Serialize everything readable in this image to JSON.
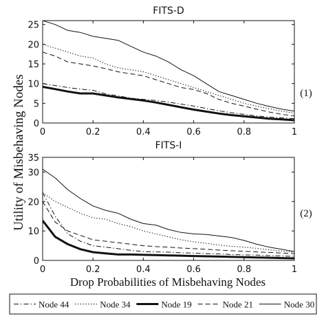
{
  "figure": {
    "ylabel": "Utility of Misbehaving Nodes",
    "xlabel": "Drop Probabilities of Misbehaving Nodes",
    "panel_labels": [
      "(1)",
      "(2)"
    ],
    "legend": [
      {
        "name": "Node 44",
        "style": "dashdot"
      },
      {
        "name": "Node 34",
        "style": "dotted"
      },
      {
        "name": "Node 19",
        "style": "thick"
      },
      {
        "name": "Node 21",
        "style": "dashed"
      },
      {
        "name": "Node 30",
        "style": "solid"
      }
    ]
  },
  "chart_data": [
    {
      "type": "line",
      "title": "FITS-D",
      "xlim": [
        0,
        1
      ],
      "ylim": [
        0,
        26
      ],
      "xticks": [
        0,
        0.2,
        0.4,
        0.6,
        0.8,
        1
      ],
      "xtick_labels": [
        "0",
        "0.2",
        "0.4",
        "0.6",
        "0.8",
        "1"
      ],
      "yticks": [
        0,
        5,
        10,
        15,
        20,
        25
      ],
      "ytick_labels": [
        "0",
        "5",
        "10",
        "15",
        "20",
        "25"
      ],
      "grid": false,
      "x": [
        0,
        0.05,
        0.1,
        0.15,
        0.2,
        0.25,
        0.3,
        0.35,
        0.4,
        0.45,
        0.5,
        0.55,
        0.6,
        0.65,
        0.7,
        0.75,
        0.8,
        0.85,
        0.9,
        0.95,
        1
      ],
      "series": [
        {
          "name": "Node 44",
          "style": "dashdot",
          "values": [
            10,
            9.5,
            9,
            8.6,
            8.3,
            7.4,
            6.9,
            6.3,
            6,
            5.7,
            5.3,
            4.8,
            4.3,
            3.7,
            3.1,
            2.6,
            2.2,
            1.8,
            1.5,
            1.3,
            1.1
          ]
        },
        {
          "name": "Node 34",
          "style": "dotted",
          "values": [
            20,
            19,
            18,
            17,
            16.5,
            15,
            14,
            13.5,
            13,
            12,
            11,
            10,
            9,
            8,
            7,
            6,
            5,
            4.3,
            3.6,
            3,
            2.5
          ]
        },
        {
          "name": "Node 19",
          "style": "thick",
          "values": [
            9.2,
            8.6,
            8,
            7.5,
            7.5,
            7,
            6.5,
            6.1,
            5.7,
            5.2,
            4.6,
            4,
            3.4,
            2.9,
            2.4,
            2,
            1.7,
            1.4,
            1.1,
            0.9,
            0.7
          ]
        },
        {
          "name": "Node 21",
          "style": "dashed",
          "values": [
            18,
            17,
            15.5,
            15,
            14.5,
            13.8,
            13,
            12.5,
            12,
            11,
            10,
            9,
            8.5,
            7.5,
            6,
            5,
            4.3,
            3.5,
            2.8,
            2.2,
            1.8
          ]
        },
        {
          "name": "Node 30",
          "style": "solid",
          "values": [
            26,
            25,
            23.5,
            23,
            22,
            21.5,
            21,
            19.5,
            18,
            17,
            15.5,
            13.5,
            12,
            10,
            8,
            7,
            6,
            5,
            4.2,
            3.5,
            3
          ]
        }
      ]
    },
    {
      "type": "line",
      "title": "FITS-I",
      "xlim": [
        0,
        1
      ],
      "ylim": [
        0,
        35
      ],
      "xticks": [
        0,
        0.2,
        0.4,
        0.6,
        0.8,
        1
      ],
      "xtick_labels": [
        "0",
        "0.2",
        "0.4",
        "0.6",
        "0.8",
        "1"
      ],
      "yticks": [
        0,
        10,
        20,
        30,
        35
      ],
      "ytick_labels": [
        "0",
        "10",
        "20",
        "30",
        "35"
      ],
      "grid": false,
      "x": [
        0,
        0.05,
        0.1,
        0.15,
        0.2,
        0.25,
        0.3,
        0.35,
        0.4,
        0.45,
        0.5,
        0.55,
        0.6,
        0.65,
        0.7,
        0.75,
        0.8,
        0.85,
        0.9,
        0.95,
        1
      ],
      "series": [
        {
          "name": "Node 44",
          "style": "dashdot",
          "values": [
            23,
            15,
            9,
            6.5,
            5,
            4.5,
            4,
            3.4,
            3,
            2.9,
            2.8,
            2.6,
            2.5,
            2.3,
            2.2,
            2,
            1.9,
            1.8,
            1.6,
            1.5,
            1.4
          ]
        },
        {
          "name": "Node 34",
          "style": "dotted",
          "values": [
            23,
            20,
            18,
            16,
            14.5,
            14,
            12.5,
            11.5,
            10,
            9,
            8,
            7,
            6.3,
            5.8,
            5.2,
            4.8,
            4.5,
            4.1,
            3.6,
            3.2,
            2.8
          ]
        },
        {
          "name": "Node 19",
          "style": "thick",
          "values": [
            13.5,
            8,
            5.5,
            3.8,
            2.8,
            2.4,
            2,
            2,
            1.9,
            1.8,
            1.7,
            1.6,
            1.5,
            1.4,
            1.3,
            1.2,
            1.1,
            1,
            0.9,
            0.8,
            0.7
          ]
        },
        {
          "name": "Node 21",
          "style": "dashed",
          "values": [
            20,
            13,
            10,
            8.5,
            7,
            6.5,
            6,
            5.5,
            5,
            4.7,
            4.5,
            4.2,
            4,
            3.8,
            3.5,
            3.3,
            3.1,
            2.9,
            2.7,
            2.5,
            2.3
          ]
        },
        {
          "name": "Node 30",
          "style": "solid",
          "values": [
            31,
            28,
            24,
            21,
            18.5,
            17,
            16,
            14,
            12.5,
            12,
            10.5,
            9.5,
            9,
            8.8,
            8.3,
            7.8,
            6.8,
            5.5,
            4.5,
            3.8,
            3
          ]
        }
      ]
    }
  ]
}
